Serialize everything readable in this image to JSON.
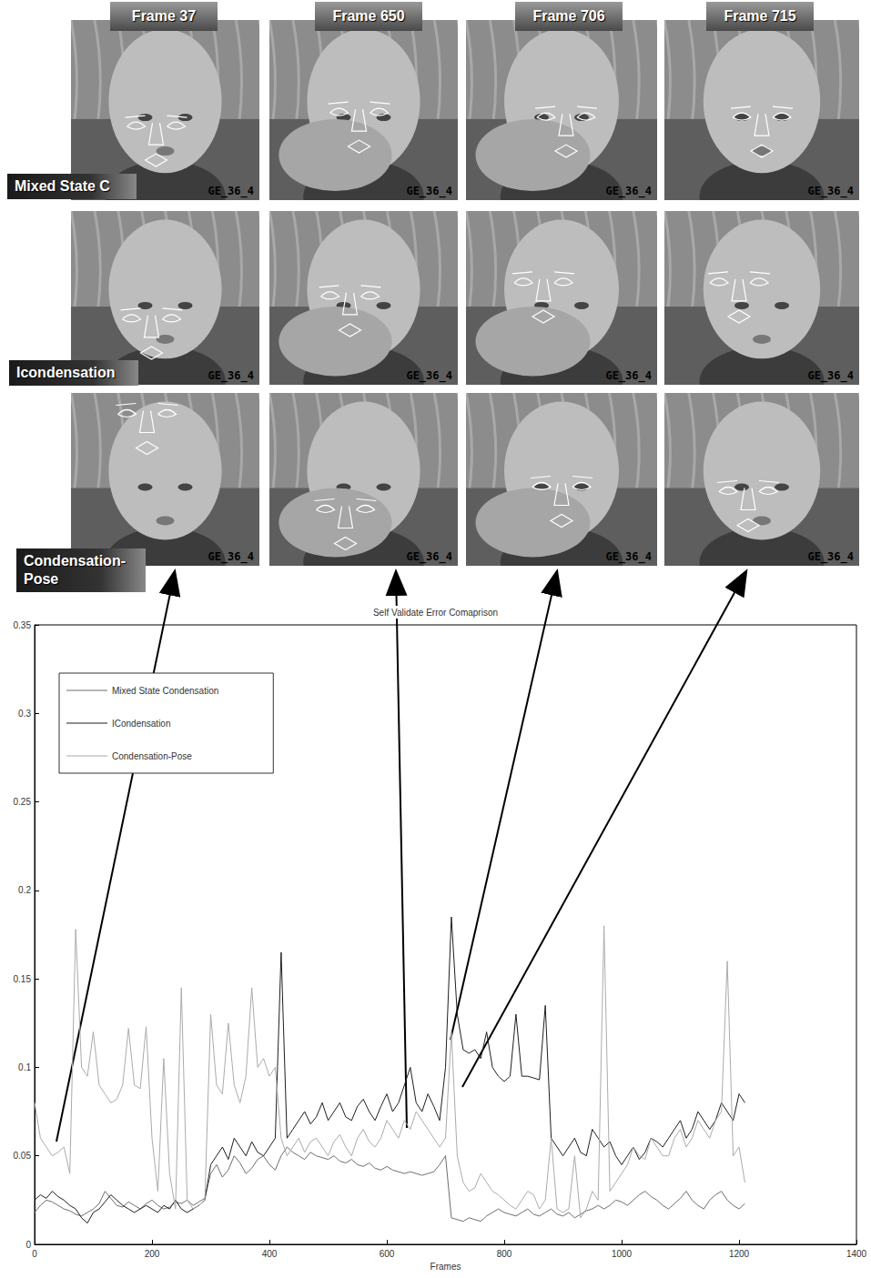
{
  "panels": {
    "columns": [
      "Frame 37",
      "Frame 650",
      "Frame 706",
      "Frame 715"
    ],
    "rows": [
      "Mixed State C",
      "Icondensation",
      "Condensation-Pose"
    ],
    "watermark": "GE_36_4"
  },
  "chart_data": {
    "type": "line",
    "title": "Self Validate Error Comaprison",
    "x_label": "Frames",
    "x": [
      0,
      10,
      20,
      30,
      40,
      50,
      60,
      70,
      80,
      90,
      100,
      110,
      120,
      130,
      140,
      150,
      160,
      170,
      180,
      190,
      200,
      210,
      220,
      230,
      240,
      250,
      260,
      270,
      280,
      290,
      300,
      310,
      320,
      330,
      340,
      350,
      360,
      370,
      380,
      390,
      400,
      410,
      420,
      430,
      440,
      450,
      460,
      470,
      480,
      490,
      500,
      510,
      520,
      530,
      540,
      550,
      560,
      570,
      580,
      590,
      600,
      610,
      620,
      630,
      640,
      650,
      660,
      670,
      680,
      690,
      700,
      710,
      720,
      730,
      740,
      750,
      760,
      770,
      780,
      790,
      800,
      810,
      820,
      830,
      840,
      850,
      860,
      870,
      880,
      890,
      900,
      910,
      920,
      930,
      940,
      950,
      960,
      970,
      980,
      990,
      1000,
      1010,
      1020,
      1030,
      1040,
      1050,
      1060,
      1070,
      1080,
      1090,
      1100,
      1110,
      1120,
      1130,
      1140,
      1150,
      1160,
      1170,
      1180,
      1190,
      1200,
      1210
    ],
    "series": [
      {
        "name": "Mixed State Condensation",
        "color": "#6e6e6e",
        "values": [
          0.018,
          0.022,
          0.025,
          0.024,
          0.022,
          0.02,
          0.019,
          0.017,
          0.016,
          0.018,
          0.02,
          0.023,
          0.03,
          0.026,
          0.022,
          0.021,
          0.024,
          0.022,
          0.02,
          0.023,
          0.025,
          0.022,
          0.02,
          0.021,
          0.024,
          0.023,
          0.025,
          0.022,
          0.024,
          0.026,
          0.04,
          0.045,
          0.038,
          0.042,
          0.05,
          0.046,
          0.04,
          0.043,
          0.048,
          0.05,
          0.045,
          0.042,
          0.05,
          0.055,
          0.052,
          0.05,
          0.048,
          0.052,
          0.05,
          0.049,
          0.048,
          0.05,
          0.047,
          0.046,
          0.048,
          0.045,
          0.044,
          0.046,
          0.043,
          0.042,
          0.044,
          0.042,
          0.041,
          0.04,
          0.041,
          0.04,
          0.039,
          0.04,
          0.041,
          0.045,
          0.05,
          0.015,
          0.014,
          0.013,
          0.015,
          0.014,
          0.013,
          0.016,
          0.018,
          0.02,
          0.018,
          0.017,
          0.016,
          0.018,
          0.02,
          0.017,
          0.016,
          0.018,
          0.02,
          0.017,
          0.016,
          0.018,
          0.015,
          0.017,
          0.019,
          0.02,
          0.022,
          0.02,
          0.022,
          0.025,
          0.024,
          0.022,
          0.025,
          0.028,
          0.03,
          0.027,
          0.025,
          0.022,
          0.02,
          0.023,
          0.026,
          0.03,
          0.025,
          0.022,
          0.02,
          0.025,
          0.028,
          0.03,
          0.025,
          0.022,
          0.02,
          0.023
        ]
      },
      {
        "name": "ICondensation",
        "color": "#1e1e1e",
        "values": [
          0.025,
          0.028,
          0.026,
          0.03,
          0.027,
          0.025,
          0.022,
          0.02,
          0.015,
          0.012,
          0.018,
          0.02,
          0.024,
          0.028,
          0.025,
          0.022,
          0.02,
          0.018,
          0.02,
          0.022,
          0.02,
          0.018,
          0.022,
          0.02,
          0.025,
          0.02,
          0.018,
          0.02,
          0.022,
          0.025,
          0.045,
          0.05,
          0.055,
          0.048,
          0.06,
          0.055,
          0.05,
          0.058,
          0.052,
          0.05,
          0.055,
          0.06,
          0.165,
          0.06,
          0.065,
          0.07,
          0.075,
          0.068,
          0.072,
          0.08,
          0.07,
          0.075,
          0.08,
          0.072,
          0.07,
          0.078,
          0.082,
          0.075,
          0.07,
          0.078,
          0.085,
          0.075,
          0.08,
          0.09,
          0.1,
          0.08,
          0.075,
          0.085,
          0.078,
          0.07,
          0.1,
          0.185,
          0.13,
          0.11,
          0.108,
          0.11,
          0.105,
          0.12,
          0.1,
          0.095,
          0.092,
          0.095,
          0.13,
          0.095,
          0.095,
          0.094,
          0.093,
          0.135,
          0.06,
          0.055,
          0.05,
          0.055,
          0.06,
          0.052,
          0.05,
          0.065,
          0.06,
          0.055,
          0.058,
          0.05,
          0.045,
          0.05,
          0.055,
          0.048,
          0.052,
          0.06,
          0.058,
          0.055,
          0.06,
          0.065,
          0.07,
          0.06,
          0.065,
          0.075,
          0.07,
          0.065,
          0.07,
          0.08,
          0.075,
          0.07,
          0.085,
          0.08
        ]
      },
      {
        "name": "Condensation-Pose",
        "color": "#ababab",
        "values": [
          0.08,
          0.06,
          0.055,
          0.05,
          0.052,
          0.055,
          0.04,
          0.178,
          0.1,
          0.095,
          0.12,
          0.09,
          0.085,
          0.08,
          0.082,
          0.09,
          0.122,
          0.09,
          0.088,
          0.123,
          0.06,
          0.03,
          0.105,
          0.04,
          0.02,
          0.145,
          0.025,
          0.02,
          0.022,
          0.025,
          0.13,
          0.09,
          0.085,
          0.125,
          0.09,
          0.08,
          0.095,
          0.145,
          0.1,
          0.105,
          0.095,
          0.1,
          0.06,
          0.05,
          0.055,
          0.06,
          0.052,
          0.058,
          0.06,
          0.055,
          0.05,
          0.058,
          0.062,
          0.055,
          0.05,
          0.06,
          0.065,
          0.058,
          0.055,
          0.06,
          0.07,
          0.065,
          0.06,
          0.07,
          0.065,
          0.075,
          0.07,
          0.065,
          0.06,
          0.055,
          0.06,
          0.12,
          0.05,
          0.035,
          0.03,
          0.032,
          0.04,
          0.035,
          0.03,
          0.028,
          0.025,
          0.022,
          0.02,
          0.025,
          0.03,
          0.028,
          0.02,
          0.025,
          0.06,
          0.02,
          0.018,
          0.02,
          0.05,
          0.015,
          0.02,
          0.03,
          0.025,
          0.18,
          0.03,
          0.035,
          0.04,
          0.045,
          0.055,
          0.05,
          0.048,
          0.06,
          0.055,
          0.05,
          0.05,
          0.06,
          0.065,
          0.055,
          0.06,
          0.07,
          0.065,
          0.06,
          0.07,
          0.075,
          0.16,
          0.05,
          0.055,
          0.035
        ]
      }
    ],
    "xlim": [
      0,
      1400
    ],
    "xticks": [
      0,
      200,
      400,
      600,
      800,
      1000,
      1200,
      1400
    ],
    "ylim": [
      0,
      0.35
    ],
    "yticks": [
      0,
      0.05,
      0.1,
      0.15,
      0.2,
      0.25,
      0.3,
      0.35
    ],
    "grid": false,
    "legend": "upper left",
    "line_style": "solid"
  }
}
